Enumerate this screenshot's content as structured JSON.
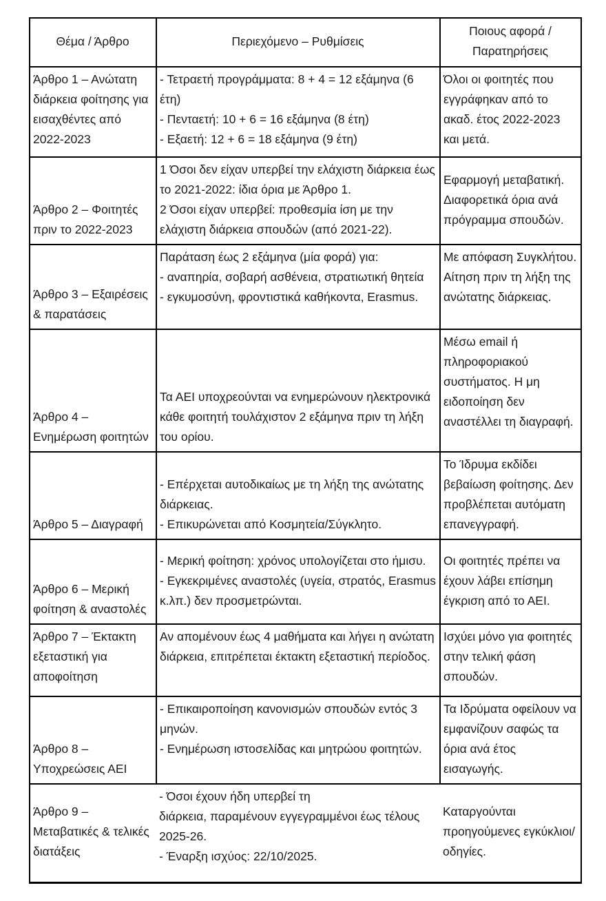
{
  "table": {
    "headers": {
      "topic": "Θέμα / Άρθρο",
      "content": "Περιεχόμενο – Ρυθμίσεις",
      "notes": "Ποιους αφορά /\nΠαρατηρήσεις"
    },
    "rows": [
      {
        "topic": "Άρθρο 1 – Ανώτατη διάρκεια φοίτησης για εισαχθέντες από 2022-2023",
        "content": "- Τετραετή προγράμματα: 8 + 4 = 12 εξάμηνα (6 έτη)\n- Πενταετή: 10 + 6 = 16 εξάμηνα (8 έτη)\n- Εξαετή: 12 + 6 = 18 εξάμηνα (9 έτη)",
        "notes": "Όλοι οι φοιτητές που εγγράφηκαν από το ακαδ. έτος 2022-2023 και μετά."
      },
      {
        "topic": "Άρθρο 2 – Φοιτητές πριν το 2022-2023",
        "content": "1 Όσοι δεν είχαν υπερβεί την ελάχιστη διάρκεια έως το 2021-2022: ίδια όρια με Άρθρο 1.\n2 Όσοι είχαν υπερβεί: προθεσμία ίση με την ελάχιστη διάρκεια σπουδών (από 2021-22).",
        "notes": "Εφαρμογή μεταβατική. Διαφορετικά όρια ανά πρόγραμμα σπουδών."
      },
      {
        "topic": "Άρθρο 3 – Εξαιρέσεις & παρατάσεις",
        "content": "Παράταση έως 2 εξάμηνα (μία φορά) για:\n- αναπηρία, σοβαρή ασθένεια, στρατιωτική θητεία\n- εγκυμοσύνη, φροντιστικά καθήκοντα, Erasmus.",
        "notes": "Με απόφαση Συγκλήτου. Αίτηση πριν τη λήξη της ανώτατης διάρκειας."
      },
      {
        "topic": "Άρθρο 4 – Ενημέρωση φοιτητών",
        "content": "Τα ΑΕΙ υποχρεούνται να ενημερώνουν ηλεκτρονικά κάθε φοιτητή τουλάχιστον 2 εξάμηνα πριν τη λήξη του ορίου.",
        "notes": "Μέσω email ή πληροφοριακού συστήματος. Η μη ειδοποίηση δεν αναστέλλει τη διαγραφή."
      },
      {
        "topic": "Άρθρο 5 – Διαγραφή",
        "content": "- Επέρχεται αυτοδικαίως με τη λήξη της ανώτατης διάρκειας.\n- Επικυρώνεται από Κοσμητεία/Σύγκλητο.",
        "notes": "Το Ίδρυμα εκδίδει βεβαίωση φοίτησης. Δεν προβλέπεται αυτόματη επανεγγραφή."
      },
      {
        "topic": "Άρθρο 6 – Μερική φοίτηση & αναστολές",
        "content": "- Μερική φοίτηση: χρόνος υπολογίζεται στο ήμισυ.\n- Εγκεκριμένες αναστολές (υγεία, στρατός, Erasmus κ.λπ.) δεν προσμετρώνται.",
        "notes": "Οι φοιτητές πρέπει να έχουν λάβει επίσημη έγκριση από το ΑΕΙ."
      },
      {
        "topic": "Άρθρο 7 – Έκτακτη εξεταστική για αποφοίτηση",
        "content": "Αν απομένουν έως 4 μαθήματα και λήγει η ανώτατη διάρκεια, επιτρέπεται έκτακτη εξεταστική περίοδος.",
        "notes": "Ισχύει μόνο για φοιτητές στην τελική φάση σπουδών."
      },
      {
        "topic": "Άρθρο 8 – Υποχρεώσεις ΑΕΙ",
        "content": "- Επικαιροποίηση κανονισμών σπουδών εντός 3 μηνών.\n- Ενημέρωση ιστοσελίδας και μητρώου φοιτητών.",
        "notes": "Τα Ιδρύματα οφείλουν να εμφανίζουν σαφώς τα όρια ανά έτος εισαγωγής."
      },
      {
        "topic": "Άρθρο 9 – Μεταβατικές & τελικές διατάξεις",
        "content": "- Όσοι έχουν ήδη υπερβεί τη\nδιάρκεια, παραμένουν εγγεγραμμένοι έως τέλους 2025-26.\n- Έναρξη ισχύος: 22/10/2025.",
        "notes": "Καταργούνται προηγούμενες εγκύκλιοι/οδηγίες."
      }
    ]
  }
}
